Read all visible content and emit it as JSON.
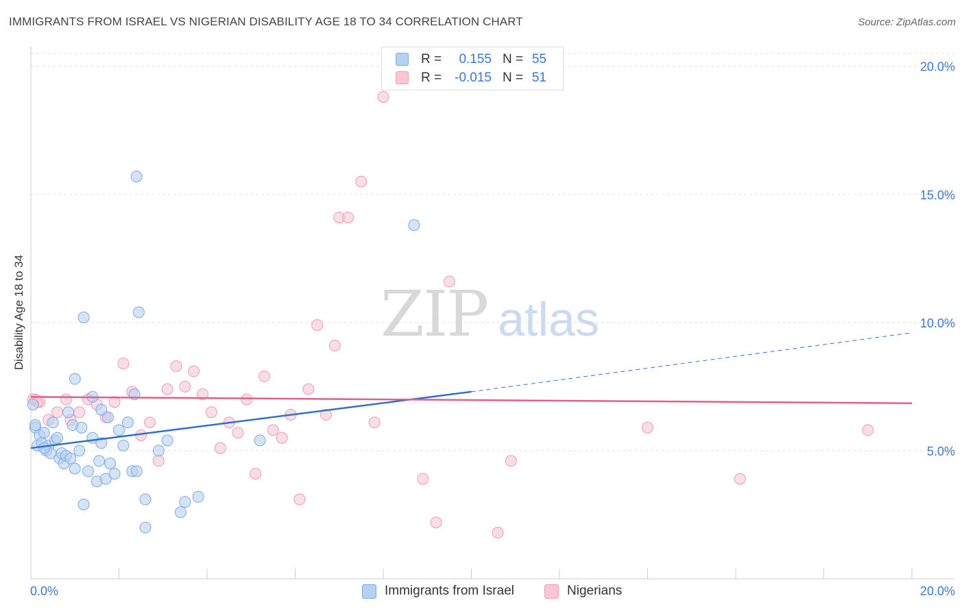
{
  "chart_data": {
    "type": "scatter",
    "title": "IMMIGRANTS FROM ISRAEL VS NIGERIAN DISABILITY AGE 18 TO 34 CORRELATION CHART",
    "source": "Source: ZipAtlas.com",
    "watermark": {
      "zip": "ZIP",
      "atlas": "atlas"
    },
    "ylabel": "Disability Age 18 to 34",
    "xlim": [
      0,
      20
    ],
    "ylim": [
      0,
      20.5
    ],
    "x_tick_labels": {
      "left": "0.0%",
      "right": "20.0%"
    },
    "y_ticks": [
      {
        "value": 5,
        "label": "5.0%"
      },
      {
        "value": 10,
        "label": "10.0%"
      },
      {
        "value": 15,
        "label": "15.0%"
      },
      {
        "value": 20,
        "label": "20.0%"
      }
    ],
    "legend_stats": [
      {
        "r_label": "R =",
        "r_value": "0.155",
        "n_label": "N =",
        "n_value": "55"
      },
      {
        "r_label": "R =",
        "r_value": "-0.015",
        "n_label": "N =",
        "n_value": "51"
      }
    ],
    "series": [
      {
        "name": "Immigrants from Israel",
        "color": "#7aaae6",
        "fill": "#b7d0f2",
        "trend_color": "#2f6fd0",
        "trend": {
          "x0": 0,
          "y0": 5.1,
          "x1": 10,
          "y1": 7.3,
          "dashed_to_x": 20,
          "dashed_y": 9.6
        },
        "points": [
          [
            0.1,
            5.9
          ],
          [
            0.15,
            5.2
          ],
          [
            0.2,
            5.6
          ],
          [
            0.25,
            5.3
          ],
          [
            0.3,
            5.7
          ],
          [
            0.35,
            5.0
          ],
          [
            0.4,
            5.2
          ],
          [
            0.45,
            4.9
          ],
          [
            0.5,
            6.1
          ],
          [
            0.55,
            5.4
          ],
          [
            0.6,
            5.5
          ],
          [
            0.65,
            4.7
          ],
          [
            0.7,
            4.9
          ],
          [
            0.75,
            4.5
          ],
          [
            0.8,
            4.8
          ],
          [
            0.85,
            6.5
          ],
          [
            0.9,
            4.7
          ],
          [
            0.95,
            6.0
          ],
          [
            1.0,
            4.3
          ],
          [
            1.1,
            5.0
          ],
          [
            1.15,
            5.9
          ],
          [
            1.2,
            10.2
          ],
          [
            1.3,
            4.2
          ],
          [
            1.4,
            5.5
          ],
          [
            1.5,
            3.8
          ],
          [
            1.55,
            4.6
          ],
          [
            1.6,
            5.3
          ],
          [
            1.7,
            3.9
          ],
          [
            1.75,
            6.3
          ],
          [
            1.8,
            4.5
          ],
          [
            1.9,
            4.1
          ],
          [
            2.0,
            5.8
          ],
          [
            2.1,
            5.2
          ],
          [
            2.2,
            6.1
          ],
          [
            2.3,
            4.2
          ],
          [
            2.35,
            7.2
          ],
          [
            2.4,
            4.2
          ],
          [
            2.45,
            10.4
          ],
          [
            2.6,
            3.1
          ],
          [
            2.9,
            5.0
          ],
          [
            3.1,
            5.4
          ],
          [
            3.4,
            2.6
          ],
          [
            3.5,
            3.0
          ],
          [
            3.8,
            3.2
          ],
          [
            2.4,
            15.7
          ],
          [
            1.0,
            7.8
          ],
          [
            1.4,
            7.1
          ],
          [
            0.3,
            5.1
          ],
          [
            2.6,
            2.0
          ],
          [
            1.2,
            2.9
          ],
          [
            0.1,
            6.0
          ],
          [
            5.2,
            5.4
          ],
          [
            8.7,
            13.8
          ],
          [
            0.05,
            6.8
          ],
          [
            1.6,
            6.6
          ]
        ]
      },
      {
        "name": "Nigerians",
        "color": "#ef9ab6",
        "fill": "#f9c6d6",
        "trend_color": "#e0608a",
        "trend": {
          "x0": 0,
          "y0": 7.1,
          "x1": 20,
          "y1": 6.85
        },
        "points": [
          [
            0.1,
            7.0
          ],
          [
            0.2,
            6.9
          ],
          [
            0.4,
            6.2
          ],
          [
            0.6,
            6.5
          ],
          [
            0.8,
            7.0
          ],
          [
            0.9,
            6.2
          ],
          [
            1.1,
            6.5
          ],
          [
            1.3,
            7.0
          ],
          [
            1.5,
            6.8
          ],
          [
            1.7,
            6.3
          ],
          [
            1.9,
            6.9
          ],
          [
            2.1,
            8.4
          ],
          [
            2.3,
            7.3
          ],
          [
            2.5,
            5.6
          ],
          [
            2.7,
            6.1
          ],
          [
            2.9,
            4.6
          ],
          [
            3.1,
            7.4
          ],
          [
            3.3,
            8.3
          ],
          [
            3.5,
            7.5
          ],
          [
            3.7,
            8.1
          ],
          [
            3.9,
            7.2
          ],
          [
            4.1,
            6.5
          ],
          [
            4.3,
            5.1
          ],
          [
            4.5,
            6.1
          ],
          [
            4.7,
            5.7
          ],
          [
            4.9,
            7.0
          ],
          [
            5.1,
            4.1
          ],
          [
            5.3,
            7.9
          ],
          [
            5.5,
            5.8
          ],
          [
            5.7,
            5.5
          ],
          [
            5.9,
            6.4
          ],
          [
            6.1,
            3.1
          ],
          [
            6.3,
            7.4
          ],
          [
            6.5,
            9.9
          ],
          [
            6.7,
            6.4
          ],
          [
            6.9,
            9.1
          ],
          [
            7.0,
            14.1
          ],
          [
            7.2,
            14.1
          ],
          [
            7.5,
            15.5
          ],
          [
            7.8,
            6.1
          ],
          [
            8.0,
            18.8
          ],
          [
            8.9,
            3.9
          ],
          [
            9.2,
            2.2
          ],
          [
            9.5,
            11.6
          ],
          [
            10.6,
            1.8
          ],
          [
            10.9,
            4.6
          ],
          [
            14.0,
            5.9
          ],
          [
            16.1,
            3.9
          ],
          [
            19.0,
            5.8
          ],
          [
            0.05,
            7.0
          ],
          [
            0.15,
            6.9
          ]
        ]
      }
    ]
  }
}
